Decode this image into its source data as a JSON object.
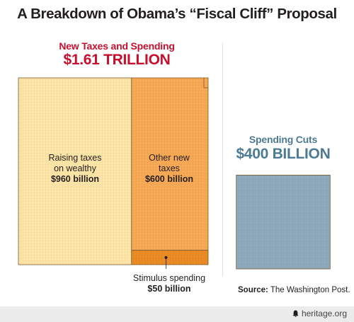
{
  "title": "A Breakdown of Obama’s “Fiscal Cliff” Proposal",
  "left_header": {
    "subtitle": "New Taxes and Spending",
    "total": "$1.61 TRILLION"
  },
  "right_header": {
    "subtitle": "Spending Cuts",
    "total": "$400 BILLION"
  },
  "source_label": "Source:",
  "source_text": "The Washington Post.",
  "credit": "heritage.org",
  "colors": {
    "wealthy": "#fde5a8",
    "other": "#f7a955",
    "stimulus": "#ea8b25",
    "cuts": "#8eabbc",
    "red": "#c8102e",
    "steel": "#4d7a93"
  },
  "chart_data": {
    "type": "area",
    "title": "A Breakdown of Obama’s “Fiscal Cliff” Proposal",
    "units": "billion USD",
    "groups": [
      {
        "name": "New Taxes and Spending",
        "total_label": "$1.61 TRILLION",
        "total": 1610,
        "segments": [
          {
            "name_line1": "Raising taxes",
            "name_line2": "on wealthy",
            "value_label": "$960 billion",
            "value": 960
          },
          {
            "name_line1": "Other new",
            "name_line2": "taxes",
            "value_label": "$600 billion",
            "value": 600
          },
          {
            "name_line1": "Stimulus spending",
            "name_line2": "",
            "value_label": "$50 billion",
            "value": 50
          }
        ]
      },
      {
        "name": "Spending Cuts",
        "total_label": "$400 BILLION",
        "total": 400,
        "segments": [
          {
            "name_line1": "Spending Cuts",
            "name_line2": "",
            "value_label": "$400 BILLION",
            "value": 400
          }
        ]
      }
    ]
  }
}
